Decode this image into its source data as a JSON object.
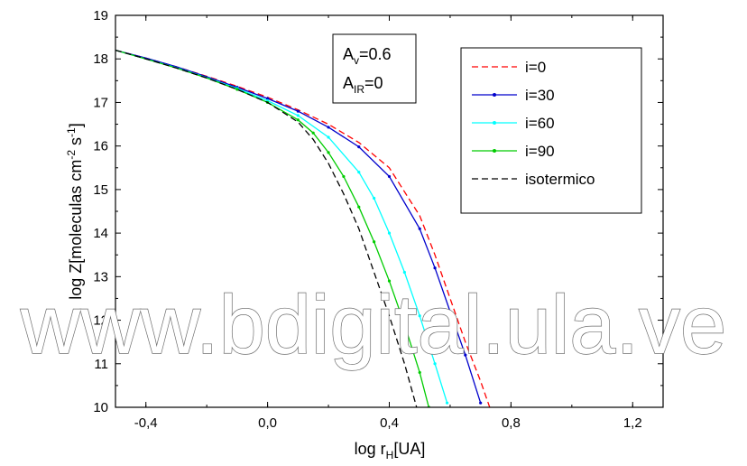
{
  "chart_data": {
    "type": "line",
    "xlabel": {
      "main": "log r",
      "sub": "H",
      "tail": "[UA]"
    },
    "ylabel": {
      "p1": "log Z[moleculas cm",
      "s1": "-2",
      "p2": " s",
      "s2": "-1",
      "p3": "]"
    },
    "xlim": [
      -0.5,
      1.3
    ],
    "ylim": [
      10,
      19
    ],
    "x_ticks": [
      -0.4,
      0.0,
      0.4,
      0.8,
      1.2
    ],
    "x_tick_labels": [
      "-0,4",
      "0,0",
      "0,4",
      "0,8",
      "1,2"
    ],
    "y_ticks": [
      10,
      11,
      12,
      13,
      14,
      15,
      16,
      17,
      18,
      19
    ],
    "y_tick_labels": [
      "10",
      "11",
      "12",
      "13",
      "14",
      "15",
      "16",
      "17",
      "18",
      "19"
    ],
    "annotation": {
      "line1": {
        "main": "A",
        "sub": "v",
        "tail": "=0.6"
      },
      "line2": {
        "main": "A",
        "sub": "IR",
        "tail": "=0"
      }
    },
    "legend_position": "top-right",
    "series": [
      {
        "name": "i=0",
        "color": "#ff0000",
        "style": "dashed",
        "x": [
          -0.5,
          -0.4,
          -0.3,
          -0.2,
          -0.1,
          0.0,
          0.1,
          0.2,
          0.3,
          0.4,
          0.5,
          0.55,
          0.6,
          0.65,
          0.7,
          0.73
        ],
        "y": [
          18.2,
          18.02,
          17.82,
          17.6,
          17.37,
          17.12,
          16.83,
          16.5,
          16.08,
          15.5,
          14.4,
          13.5,
          12.5,
          11.5,
          10.6,
          10.0
        ]
      },
      {
        "name": "i=30",
        "color": "#0000cc",
        "style": "solid-markers",
        "x": [
          -0.5,
          -0.4,
          -0.3,
          -0.2,
          -0.1,
          0.0,
          0.1,
          0.2,
          0.3,
          0.4,
          0.5,
          0.55,
          0.6,
          0.65,
          0.7
        ],
        "y": [
          18.2,
          18.02,
          17.82,
          17.59,
          17.35,
          17.09,
          16.8,
          16.43,
          15.98,
          15.3,
          14.1,
          13.2,
          12.2,
          11.2,
          10.1
        ]
      },
      {
        "name": "i=60",
        "color": "#00ffff",
        "style": "solid-markers",
        "x": [
          -0.5,
          -0.4,
          -0.3,
          -0.2,
          -0.1,
          0.0,
          0.1,
          0.2,
          0.3,
          0.35,
          0.4,
          0.45,
          0.5,
          0.55,
          0.59
        ],
        "y": [
          18.2,
          18.0,
          17.8,
          17.57,
          17.32,
          17.04,
          16.7,
          16.2,
          15.4,
          14.8,
          14.0,
          13.1,
          12.1,
          11.0,
          10.1
        ]
      },
      {
        "name": "i=90",
        "color": "#00cc00",
        "style": "solid-markers",
        "x": [
          -0.5,
          -0.4,
          -0.3,
          -0.2,
          -0.1,
          0.0,
          0.1,
          0.15,
          0.2,
          0.25,
          0.3,
          0.35,
          0.4,
          0.45,
          0.5,
          0.53
        ],
        "y": [
          18.2,
          18.0,
          17.79,
          17.56,
          17.3,
          17.0,
          16.6,
          16.3,
          15.85,
          15.3,
          14.6,
          13.8,
          12.9,
          11.9,
          10.8,
          10.0
        ]
      },
      {
        "name": "isotermico",
        "color": "#000000",
        "style": "dashed",
        "x": [
          -0.5,
          -0.4,
          -0.3,
          -0.2,
          -0.1,
          0.0,
          0.1,
          0.15,
          0.2,
          0.25,
          0.3,
          0.35,
          0.4,
          0.45,
          0.49
        ],
        "y": [
          18.2,
          18.0,
          17.79,
          17.56,
          17.3,
          17.0,
          16.55,
          16.15,
          15.6,
          14.9,
          14.1,
          13.1,
          12.1,
          11.0,
          10.0
        ]
      }
    ]
  },
  "watermark": "www.bdigital.ula.ve"
}
